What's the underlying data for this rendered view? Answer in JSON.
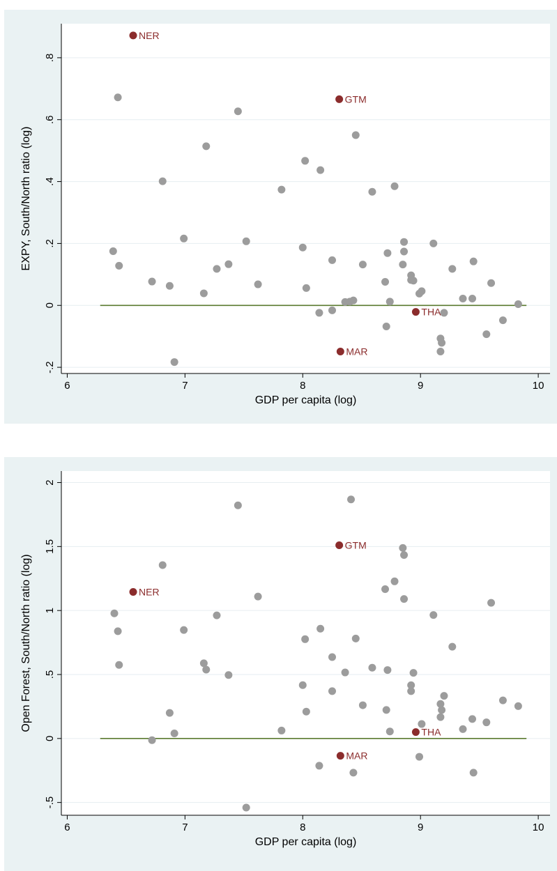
{
  "chart_data": [
    {
      "type": "scatter",
      "xlabel": "GDP per capita (log)",
      "ylabel": "EXPY, South/North ratio (log)",
      "xlim": [
        5.95,
        10.1
      ],
      "ylim": [
        -0.22,
        0.91
      ],
      "xticks": [
        6,
        7,
        8,
        9,
        10
      ],
      "xtick_labels": [
        "6",
        "7",
        "8",
        "9",
        "10"
      ],
      "yticks": [
        -0.2,
        0,
        0.2,
        0.4,
        0.6,
        0.8
      ],
      "ytick_labels": [
        "-.2",
        "0",
        ".2",
        ".4",
        ".6",
        ".8"
      ],
      "reference_line": {
        "y": 0,
        "x_from": 6.28,
        "x_to": 9.9,
        "color": "#5a7a2f"
      },
      "grid": "horizontal",
      "colors": {
        "point": "#9c9c9c",
        "highlight": "#8b2c2c"
      },
      "points": [
        {
          "x": 6.39,
          "y": 0.175
        },
        {
          "x": 6.43,
          "y": 0.672
        },
        {
          "x": 6.44,
          "y": 0.128
        },
        {
          "x": 6.72,
          "y": 0.077
        },
        {
          "x": 6.81,
          "y": 0.401
        },
        {
          "x": 6.87,
          "y": 0.063
        },
        {
          "x": 6.91,
          "y": -0.183
        },
        {
          "x": 6.99,
          "y": 0.216
        },
        {
          "x": 7.16,
          "y": 0.039
        },
        {
          "x": 7.18,
          "y": 0.514
        },
        {
          "x": 7.27,
          "y": 0.118
        },
        {
          "x": 7.37,
          "y": 0.133
        },
        {
          "x": 7.45,
          "y": 0.627
        },
        {
          "x": 7.52,
          "y": 0.207
        },
        {
          "x": 7.62,
          "y": 0.068
        },
        {
          "x": 7.82,
          "y": 0.374
        },
        {
          "x": 8.0,
          "y": 0.187
        },
        {
          "x": 8.02,
          "y": 0.467
        },
        {
          "x": 8.03,
          "y": 0.056
        },
        {
          "x": 8.14,
          "y": -0.024
        },
        {
          "x": 8.15,
          "y": 0.437
        },
        {
          "x": 8.25,
          "y": 0.146
        },
        {
          "x": 8.25,
          "y": -0.016
        },
        {
          "x": 8.36,
          "y": 0.011
        },
        {
          "x": 8.4,
          "y": 0.012
        },
        {
          "x": 8.43,
          "y": 0.016
        },
        {
          "x": 8.45,
          "y": 0.55
        },
        {
          "x": 8.51,
          "y": 0.132
        },
        {
          "x": 8.59,
          "y": 0.367
        },
        {
          "x": 8.7,
          "y": 0.076
        },
        {
          "x": 8.71,
          "y": -0.068
        },
        {
          "x": 8.72,
          "y": 0.169
        },
        {
          "x": 8.74,
          "y": 0.012
        },
        {
          "x": 8.78,
          "y": 0.385
        },
        {
          "x": 8.85,
          "y": 0.132
        },
        {
          "x": 8.86,
          "y": 0.205
        },
        {
          "x": 8.86,
          "y": 0.174
        },
        {
          "x": 8.92,
          "y": 0.082
        },
        {
          "x": 8.92,
          "y": 0.097
        },
        {
          "x": 8.94,
          "y": 0.08
        },
        {
          "x": 8.99,
          "y": 0.038
        },
        {
          "x": 9.01,
          "y": 0.046
        },
        {
          "x": 9.11,
          "y": 0.2
        },
        {
          "x": 9.17,
          "y": -0.107
        },
        {
          "x": 9.17,
          "y": -0.149
        },
        {
          "x": 9.18,
          "y": -0.121
        },
        {
          "x": 9.2,
          "y": -0.024
        },
        {
          "x": 9.27,
          "y": 0.118
        },
        {
          "x": 9.36,
          "y": 0.022
        },
        {
          "x": 9.44,
          "y": 0.022
        },
        {
          "x": 9.45,
          "y": 0.142
        },
        {
          "x": 9.56,
          "y": -0.093
        },
        {
          "x": 9.6,
          "y": 0.072
        },
        {
          "x": 9.7,
          "y": -0.048
        },
        {
          "x": 9.83,
          "y": 0.004
        }
      ],
      "highlighted": [
        {
          "label": "NER",
          "x": 6.56,
          "y": 0.872
        },
        {
          "label": "GTM",
          "x": 8.31,
          "y": 0.666
        },
        {
          "label": "THA",
          "x": 8.96,
          "y": -0.021
        },
        {
          "label": "MAR",
          "x": 8.32,
          "y": -0.149
        }
      ]
    },
    {
      "type": "scatter",
      "xlabel": "GDP per capita (log)",
      "ylabel": "Open Forest, South/North ratio (log)",
      "xlim": [
        5.95,
        10.1
      ],
      "ylim": [
        -0.6,
        2.09
      ],
      "xticks": [
        6,
        7,
        8,
        9,
        10
      ],
      "xtick_labels": [
        "6",
        "7",
        "8",
        "9",
        "10"
      ],
      "yticks": [
        -0.5,
        0,
        0.5,
        1,
        1.5,
        2
      ],
      "ytick_labels": [
        "-.5",
        "0",
        ".5",
        "1",
        "1.5",
        "2"
      ],
      "reference_line": {
        "y": 0,
        "x_from": 6.28,
        "x_to": 9.9,
        "color": "#5a7a2f"
      },
      "grid": "horizontal",
      "colors": {
        "point": "#9c9c9c",
        "highlight": "#8b2c2c"
      },
      "points": [
        {
          "x": 6.4,
          "y": 0.978
        },
        {
          "x": 6.43,
          "y": 0.838
        },
        {
          "x": 6.44,
          "y": 0.575
        },
        {
          "x": 6.72,
          "y": -0.013
        },
        {
          "x": 6.81,
          "y": 1.355
        },
        {
          "x": 6.87,
          "y": 0.2
        },
        {
          "x": 6.91,
          "y": 0.04
        },
        {
          "x": 6.99,
          "y": 0.848
        },
        {
          "x": 7.16,
          "y": 0.588
        },
        {
          "x": 7.18,
          "y": 0.538
        },
        {
          "x": 7.27,
          "y": 0.962
        },
        {
          "x": 7.37,
          "y": 0.496
        },
        {
          "x": 7.45,
          "y": 1.822
        },
        {
          "x": 7.52,
          "y": -0.54
        },
        {
          "x": 7.62,
          "y": 1.109
        },
        {
          "x": 7.82,
          "y": 0.062
        },
        {
          "x": 8.0,
          "y": 0.417
        },
        {
          "x": 8.02,
          "y": 0.776
        },
        {
          "x": 8.03,
          "y": 0.21
        },
        {
          "x": 8.14,
          "y": -0.213
        },
        {
          "x": 8.15,
          "y": 0.858
        },
        {
          "x": 8.25,
          "y": 0.636
        },
        {
          "x": 8.25,
          "y": 0.37
        },
        {
          "x": 8.36,
          "y": 0.516
        },
        {
          "x": 8.41,
          "y": 1.868
        },
        {
          "x": 8.43,
          "y": -0.267
        },
        {
          "x": 8.45,
          "y": 0.781
        },
        {
          "x": 8.51,
          "y": 0.26
        },
        {
          "x": 8.59,
          "y": 0.553
        },
        {
          "x": 8.7,
          "y": 1.167
        },
        {
          "x": 8.71,
          "y": 0.223
        },
        {
          "x": 8.72,
          "y": 0.535
        },
        {
          "x": 8.74,
          "y": 0.055
        },
        {
          "x": 8.78,
          "y": 1.228
        },
        {
          "x": 8.85,
          "y": 1.489
        },
        {
          "x": 8.86,
          "y": 1.434
        },
        {
          "x": 8.86,
          "y": 1.09
        },
        {
          "x": 8.92,
          "y": 0.416
        },
        {
          "x": 8.92,
          "y": 0.37
        },
        {
          "x": 8.94,
          "y": 0.513
        },
        {
          "x": 8.99,
          "y": -0.143
        },
        {
          "x": 9.01,
          "y": 0.113
        },
        {
          "x": 9.11,
          "y": 0.965
        },
        {
          "x": 9.17,
          "y": 0.27
        },
        {
          "x": 9.17,
          "y": 0.167
        },
        {
          "x": 9.18,
          "y": 0.222
        },
        {
          "x": 9.2,
          "y": 0.333
        },
        {
          "x": 9.27,
          "y": 0.717
        },
        {
          "x": 9.36,
          "y": 0.073
        },
        {
          "x": 9.44,
          "y": 0.152
        },
        {
          "x": 9.45,
          "y": -0.267
        },
        {
          "x": 9.56,
          "y": 0.126
        },
        {
          "x": 9.6,
          "y": 1.06
        },
        {
          "x": 9.7,
          "y": 0.298
        },
        {
          "x": 9.83,
          "y": 0.253
        }
      ],
      "highlighted": [
        {
          "label": "NER",
          "x": 6.56,
          "y": 1.145
        },
        {
          "label": "GTM",
          "x": 8.31,
          "y": 1.51
        },
        {
          "label": "THA",
          "x": 8.96,
          "y": 0.05
        },
        {
          "label": "MAR",
          "x": 8.32,
          "y": -0.135
        }
      ]
    }
  ]
}
